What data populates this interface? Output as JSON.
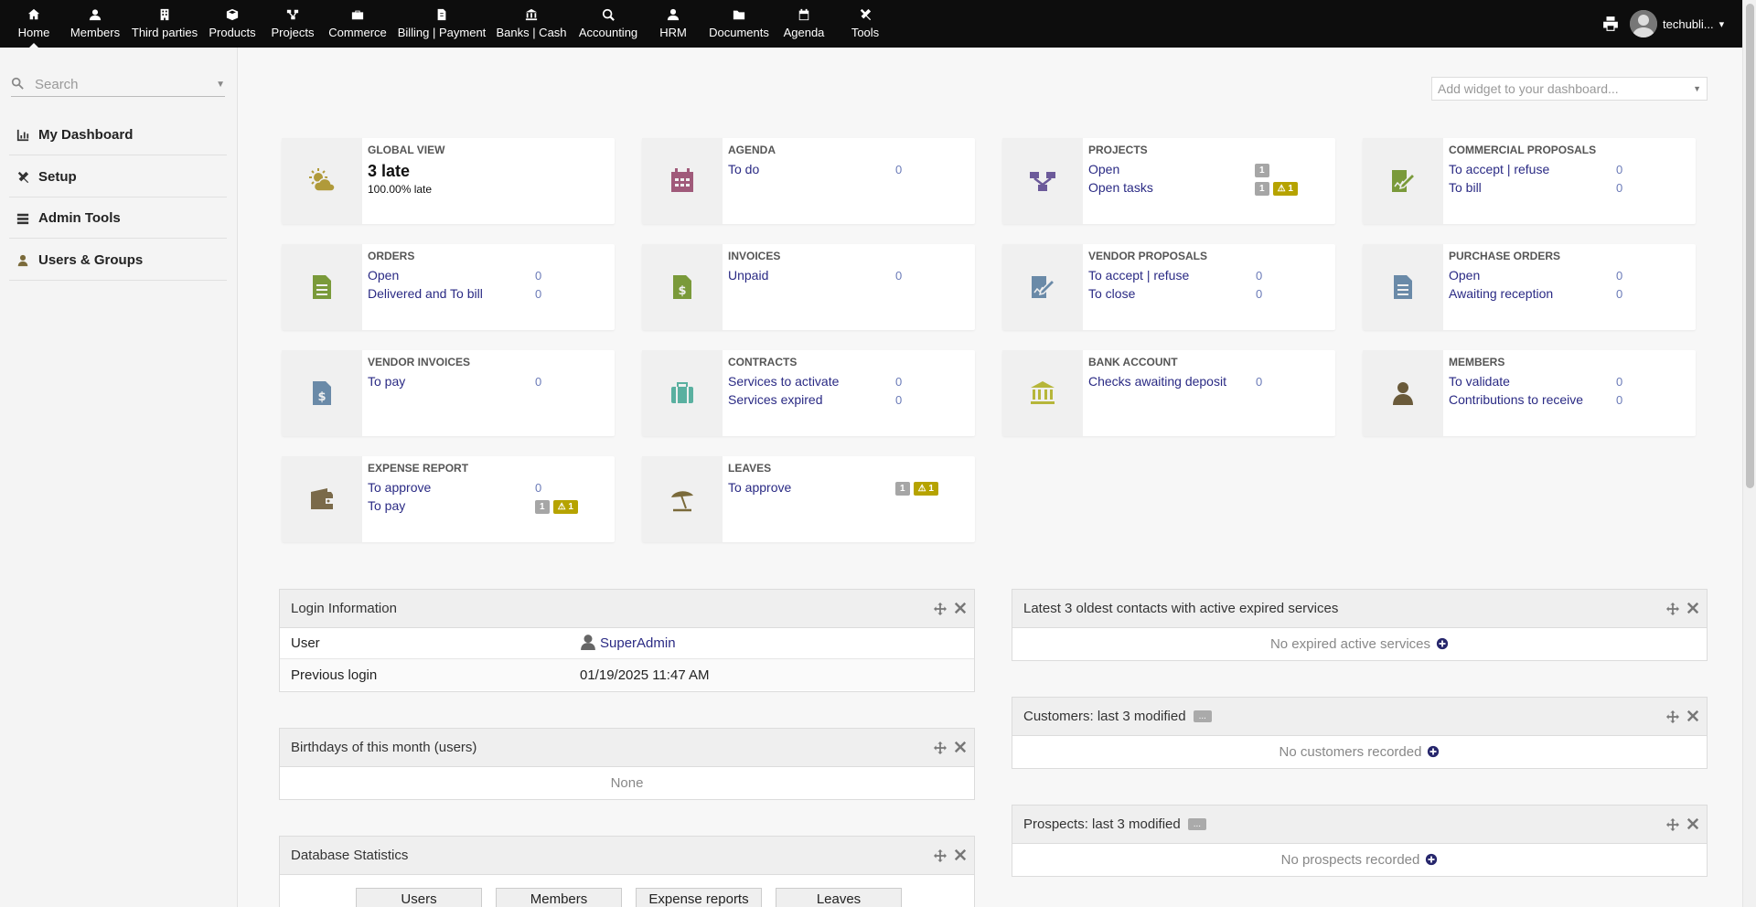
{
  "topnav": {
    "items": [
      {
        "label": "Home",
        "icon": "home-icon"
      },
      {
        "label": "Members",
        "icon": "user-icon"
      },
      {
        "label": "Third parties",
        "icon": "building-icon"
      },
      {
        "label": "Products",
        "icon": "cube-icon"
      },
      {
        "label": "Projects",
        "icon": "project-icon"
      },
      {
        "label": "Commerce",
        "icon": "briefcase-icon"
      },
      {
        "label": "Billing | Payment",
        "icon": "invoice-icon"
      },
      {
        "label": "Banks | Cash",
        "icon": "bank-icon"
      },
      {
        "label": "Accounting",
        "icon": "search-dollar-icon"
      },
      {
        "label": "HRM",
        "icon": "user-tie-icon"
      },
      {
        "label": "Documents",
        "icon": "folder-icon"
      },
      {
        "label": "Agenda",
        "icon": "calendar-icon"
      },
      {
        "label": "Tools",
        "icon": "tools-icon"
      }
    ],
    "user_name": "techubli..."
  },
  "leftmenu": {
    "search_placeholder": "Search",
    "items": [
      {
        "label": "My Dashboard",
        "icon": "chart-icon"
      },
      {
        "label": "Setup",
        "icon": "tools-icon"
      },
      {
        "label": "Admin Tools",
        "icon": "server-icon"
      },
      {
        "label": "Users & Groups",
        "icon": "user-icon"
      }
    ]
  },
  "add_widget": "Add widget to your dashboard...",
  "boxes": {
    "global": {
      "title": "GLOBAL VIEW",
      "big": "3 late",
      "small": "100.00% late"
    },
    "agenda": {
      "title": "AGENDA",
      "l1": "To do",
      "v1": "0"
    },
    "projects": {
      "title": "PROJECTS",
      "l1": "Open",
      "l2": "Open tasks",
      "b1": "1",
      "b2": "1",
      "b3": "1"
    },
    "proposals": {
      "title": "COMMERCIAL PROPOSALS",
      "l1": "To accept | refuse",
      "v1": "0",
      "l2": "To bill",
      "v2": "0"
    },
    "orders": {
      "title": "ORDERS",
      "l1": "Open",
      "v1": "0",
      "l2": "Delivered and To bill",
      "v2": "0"
    },
    "invoices": {
      "title": "INVOICES",
      "l1": "Unpaid",
      "v1": "0"
    },
    "vendorprop": {
      "title": "VENDOR PROPOSALS",
      "l1": "To accept | refuse",
      "v1": "0",
      "l2": "To close",
      "v2": "0"
    },
    "purchase": {
      "title": "PURCHASE ORDERS",
      "l1": "Open",
      "v1": "0",
      "l2": "Awaiting reception",
      "v2": "0"
    },
    "vendorinv": {
      "title": "VENDOR INVOICES",
      "l1": "To pay",
      "v1": "0"
    },
    "contracts": {
      "title": "CONTRACTS",
      "l1": "Services to activate",
      "v1": "0",
      "l2": "Services expired",
      "v2": "0"
    },
    "bank": {
      "title": "BANK ACCOUNT",
      "l1": "Checks awaiting deposit",
      "v1": "0"
    },
    "members": {
      "title": "MEMBERS",
      "l1": "To validate",
      "v1": "0",
      "l2": "Contributions to receive",
      "v2": "0"
    },
    "expense": {
      "title": "EXPENSE REPORT",
      "l1": "To approve",
      "v1": "0",
      "l2": "To pay",
      "b1": "1",
      "b2": "1"
    },
    "leaves": {
      "title": "LEAVES",
      "l1": "To approve",
      "b1": "1",
      "b2": "1"
    }
  },
  "panels": {
    "login": {
      "title": "Login Information",
      "user_label": "User",
      "user_value": "SuperAdmin",
      "prev_label": "Previous login",
      "prev_value": "01/19/2025 11:47 AM"
    },
    "birthdays": {
      "title": "Birthdays of this month (users)",
      "empty": "None"
    },
    "dbstats": {
      "title": "Database Statistics",
      "buttons": [
        "Users",
        "Members",
        "Expense reports",
        "Leaves"
      ]
    },
    "contacts": {
      "title": "Latest 3 oldest contacts with active expired services",
      "empty": "No expired active services"
    },
    "customers": {
      "title": "Customers: last 3 modified",
      "more": "...",
      "empty": "No customers recorded"
    },
    "prospects": {
      "title": "Prospects: last 3 modified",
      "more": "...",
      "empty": "No prospects recorded"
    }
  },
  "colors": {
    "topbar": "#0d0d0d",
    "link": "#2a2a84",
    "badge_warn": "#b6a300",
    "badge_grey": "#a6a6a6"
  }
}
